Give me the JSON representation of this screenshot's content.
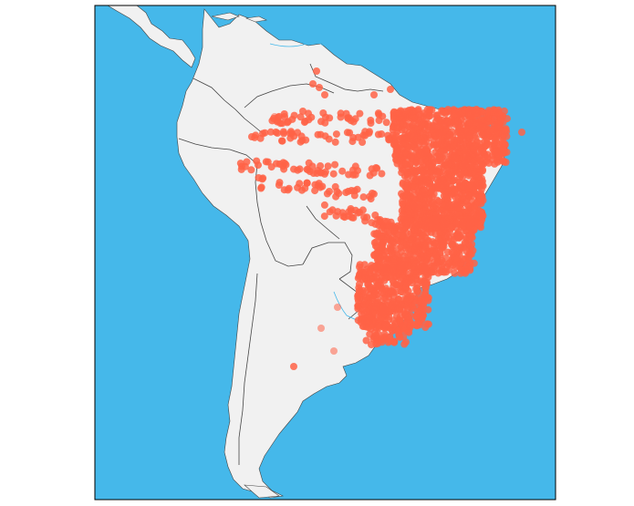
{
  "map": {
    "colors": {
      "ocean": "#45b8ea",
      "land": "#f1f1f1",
      "border": "#444444",
      "marker": "#ff6347",
      "frame": "#000000"
    },
    "marker_opacity": 0.85,
    "faded_marker_opacity": 0.55,
    "region": "South America"
  }
}
